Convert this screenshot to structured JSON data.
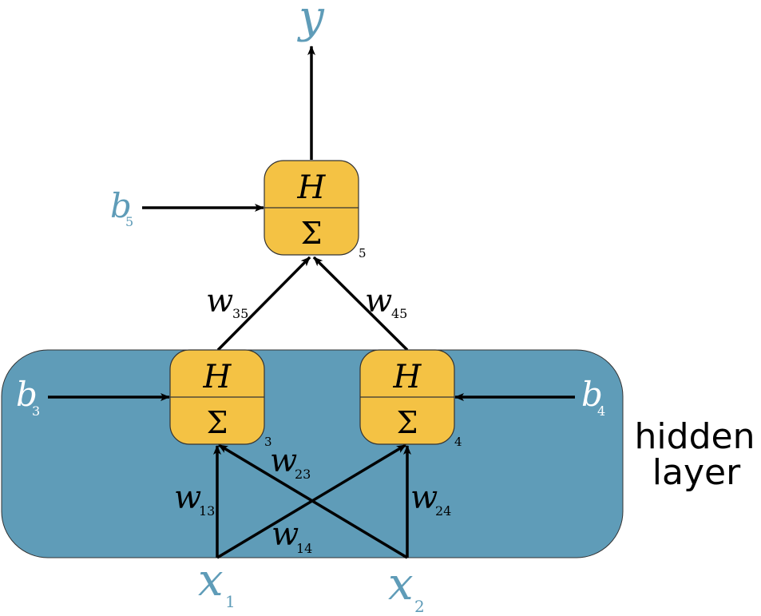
{
  "colors": {
    "hidden_band": "#5f9cb8",
    "neuron_fill": "#f4c244",
    "neuron_stroke": "#333333",
    "accent_text": "#5f9cb8",
    "arrow": "#000000"
  },
  "output": {
    "symbol": "y"
  },
  "inputs": [
    {
      "symbol": "x",
      "sub": "1"
    },
    {
      "symbol": "x",
      "sub": "2"
    }
  ],
  "hidden_layer_label": [
    "hidden",
    "layer"
  ],
  "neurons": [
    {
      "top": "H",
      "bottom": "Σ",
      "index": "5"
    },
    {
      "top": "H",
      "bottom": "Σ",
      "index": "3"
    },
    {
      "top": "H",
      "bottom": "Σ",
      "index": "4"
    }
  ],
  "biases": [
    {
      "symbol": "b",
      "sub": "5"
    },
    {
      "symbol": "b",
      "sub": "3"
    },
    {
      "symbol": "b",
      "sub": "4"
    }
  ],
  "weights": [
    {
      "symbol": "w",
      "sub": "35"
    },
    {
      "symbol": "w",
      "sub": "45"
    },
    {
      "symbol": "w",
      "sub": "13"
    },
    {
      "symbol": "w",
      "sub": "23"
    },
    {
      "symbol": "w",
      "sub": "14"
    },
    {
      "symbol": "w",
      "sub": "24"
    }
  ]
}
